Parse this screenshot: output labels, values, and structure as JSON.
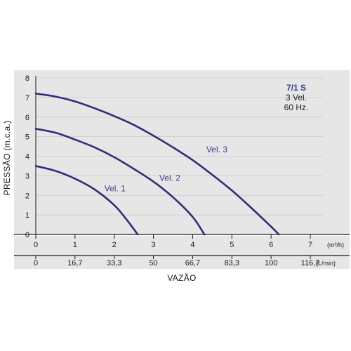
{
  "chart_data": {
    "type": "line",
    "title": "7/1 S",
    "subtitle_lines": [
      "3 Vel.",
      "60 Hz."
    ],
    "xlabel": "VAZÃO",
    "ylabel": "PRESSÃO (m.c.a.)",
    "x_unit_primary": "(m³/h)",
    "x_unit_secondary": "(L/min)",
    "xlim": [
      0,
      7
    ],
    "ylim": [
      0,
      8
    ],
    "x_ticks_primary": [
      "0",
      "1",
      "2",
      "3",
      "4",
      "5",
      "6",
      "7"
    ],
    "x_ticks_secondary": [
      "0",
      "16,7",
      "33,3",
      "50",
      "66,7",
      "83,3",
      "100",
      "116,7"
    ],
    "y_ticks": [
      "0",
      "1",
      "2",
      "3",
      "4",
      "5",
      "6",
      "7",
      "8"
    ],
    "grid": "horizontal",
    "colors": {
      "curve": "#2e2f7a",
      "label": "#3a3c8c",
      "panel": "#e6e6e6",
      "axis_band": "#e6e6e6",
      "grid": "#c8c8c8"
    },
    "series": [
      {
        "name": "Vel. 1",
        "x": [
          0,
          0.5,
          1.0,
          1.5,
          2.0,
          2.3,
          2.6
        ],
        "y": [
          3.5,
          3.25,
          2.85,
          2.3,
          1.5,
          0.8,
          0
        ]
      },
      {
        "name": "Vel. 2",
        "x": [
          0,
          0.5,
          1.0,
          1.5,
          2.0,
          2.5,
          3.0,
          3.5,
          4.0,
          4.3
        ],
        "y": [
          5.4,
          5.2,
          4.85,
          4.45,
          3.95,
          3.35,
          2.7,
          1.9,
          0.9,
          0
        ]
      },
      {
        "name": "Vel. 3",
        "x": [
          0,
          0.5,
          1.0,
          1.5,
          2.0,
          2.5,
          3.0,
          3.5,
          4.0,
          4.5,
          5.0,
          5.5,
          6.0,
          6.2
        ],
        "y": [
          7.2,
          7.05,
          6.8,
          6.45,
          6.05,
          5.6,
          5.05,
          4.45,
          3.8,
          3.05,
          2.25,
          1.35,
          0.4,
          0
        ]
      }
    ],
    "curve_label_positions": [
      {
        "name": "Vel. 1",
        "x": 1.75,
        "y": 2.2
      },
      {
        "name": "Vel. 2",
        "x": 3.15,
        "y": 2.75
      },
      {
        "name": "Vel. 3",
        "x": 4.35,
        "y": 4.2
      }
    ]
  }
}
